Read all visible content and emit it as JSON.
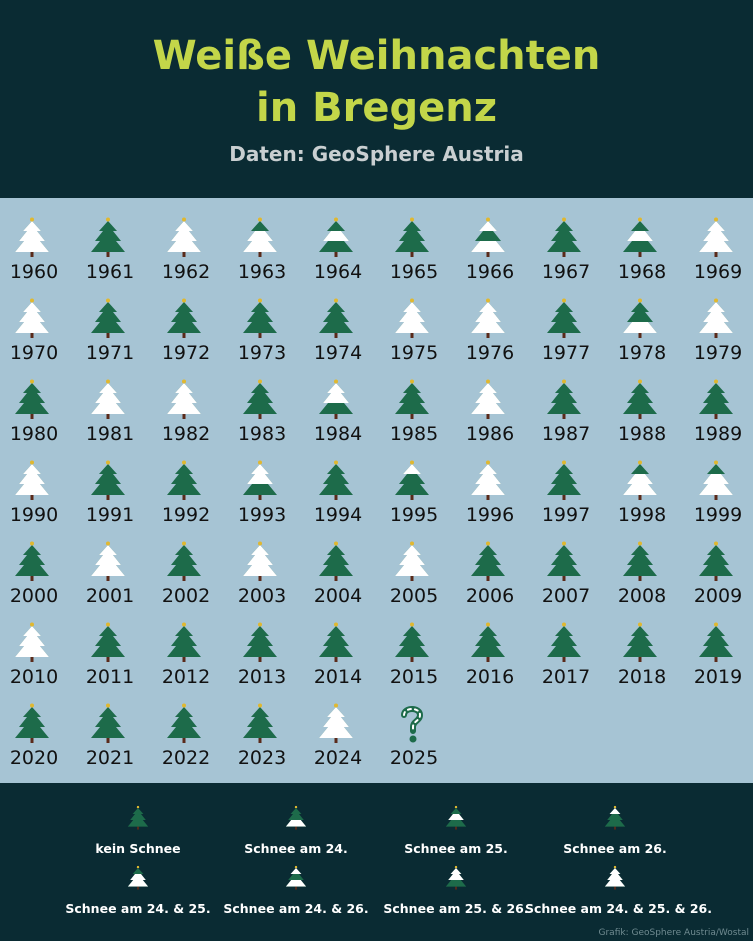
{
  "header": {
    "title": "Weiße Weihnachten\nin Bregenz",
    "subtitle": "Daten: GeoSphere Austria"
  },
  "colors": {
    "header_bg": "#0a2b33",
    "grid_bg": "#a6c4d4",
    "title": "#c3d649",
    "tree_green": "#1d6b4a",
    "snow": "#ffffff",
    "trunk": "#5a2a1a",
    "star": "#e0b830"
  },
  "chart_data": {
    "type": "table",
    "title": "Weiße Weihnachten\nin Bregenz",
    "subtitle": "Daten: GeoSphere Austria",
    "legend_placement": "bottom",
    "categories_legend": [
      {
        "code": "none",
        "label": "kein Schnee"
      },
      {
        "code": "24",
        "label": "Schnee am 24."
      },
      {
        "code": "25",
        "label": "Schnee am 25."
      },
      {
        "code": "26",
        "label": "Schnee am 26."
      },
      {
        "code": "24_25",
        "label": "Schnee am 24. & 25."
      },
      {
        "code": "24_26",
        "label": "Schnee am 24. & 26."
      },
      {
        "code": "25_26",
        "label": "Schnee am 25. & 26."
      },
      {
        "code": "24_25_26",
        "label": "Schnee am 24. & 25. & 26."
      }
    ],
    "years": [
      {
        "year": "1960",
        "snow": "24_25_26"
      },
      {
        "year": "1961",
        "snow": "none"
      },
      {
        "year": "1962",
        "snow": "24_25_26"
      },
      {
        "year": "1963",
        "snow": "24_25"
      },
      {
        "year": "1964",
        "snow": "25"
      },
      {
        "year": "1965",
        "snow": "none"
      },
      {
        "year": "1966",
        "snow": "24_26"
      },
      {
        "year": "1967",
        "snow": "none"
      },
      {
        "year": "1968",
        "snow": "25"
      },
      {
        "year": "1969",
        "snow": "24_25_26"
      },
      {
        "year": "1970",
        "snow": "24_25_26"
      },
      {
        "year": "1971",
        "snow": "none"
      },
      {
        "year": "1972",
        "snow": "none"
      },
      {
        "year": "1973",
        "snow": "none"
      },
      {
        "year": "1974",
        "snow": "none"
      },
      {
        "year": "1975",
        "snow": "24_25_26"
      },
      {
        "year": "1976",
        "snow": "24_25_26"
      },
      {
        "year": "1977",
        "snow": "none"
      },
      {
        "year": "1978",
        "snow": "24"
      },
      {
        "year": "1979",
        "snow": "24_25_26"
      },
      {
        "year": "1980",
        "snow": "none"
      },
      {
        "year": "1981",
        "snow": "24_25_26"
      },
      {
        "year": "1982",
        "snow": "24_25_26"
      },
      {
        "year": "1983",
        "snow": "none"
      },
      {
        "year": "1984",
        "snow": "25_26"
      },
      {
        "year": "1985",
        "snow": "none"
      },
      {
        "year": "1986",
        "snow": "24_25_26"
      },
      {
        "year": "1987",
        "snow": "none"
      },
      {
        "year": "1988",
        "snow": "none"
      },
      {
        "year": "1989",
        "snow": "none"
      },
      {
        "year": "1990",
        "snow": "24_25_26"
      },
      {
        "year": "1991",
        "snow": "none"
      },
      {
        "year": "1992",
        "snow": "none"
      },
      {
        "year": "1993",
        "snow": "25_26"
      },
      {
        "year": "1994",
        "snow": "none"
      },
      {
        "year": "1995",
        "snow": "26"
      },
      {
        "year": "1996",
        "snow": "24_25_26"
      },
      {
        "year": "1997",
        "snow": "none"
      },
      {
        "year": "1998",
        "snow": "24_25"
      },
      {
        "year": "1999",
        "snow": "24_25"
      },
      {
        "year": "2000",
        "snow": "none"
      },
      {
        "year": "2001",
        "snow": "24_25_26"
      },
      {
        "year": "2002",
        "snow": "none"
      },
      {
        "year": "2003",
        "snow": "24_25_26"
      },
      {
        "year": "2004",
        "snow": "none"
      },
      {
        "year": "2005",
        "snow": "24_25_26"
      },
      {
        "year": "2006",
        "snow": "none"
      },
      {
        "year": "2007",
        "snow": "none"
      },
      {
        "year": "2008",
        "snow": "none"
      },
      {
        "year": "2009",
        "snow": "none"
      },
      {
        "year": "2010",
        "snow": "24_25_26"
      },
      {
        "year": "2011",
        "snow": "none"
      },
      {
        "year": "2012",
        "snow": "none"
      },
      {
        "year": "2013",
        "snow": "none"
      },
      {
        "year": "2014",
        "snow": "none"
      },
      {
        "year": "2015",
        "snow": "none"
      },
      {
        "year": "2016",
        "snow": "none"
      },
      {
        "year": "2017",
        "snow": "none"
      },
      {
        "year": "2018",
        "snow": "none"
      },
      {
        "year": "2019",
        "snow": "none"
      },
      {
        "year": "2020",
        "snow": "none"
      },
      {
        "year": "2021",
        "snow": "none"
      },
      {
        "year": "2022",
        "snow": "none"
      },
      {
        "year": "2023",
        "snow": "none"
      },
      {
        "year": "2024",
        "snow": "24_25_26"
      },
      {
        "year": "2025",
        "snow": "unknown",
        "glyph": "?"
      }
    ]
  },
  "credit": "Grafik: GeoSphere Austria/Wostal"
}
